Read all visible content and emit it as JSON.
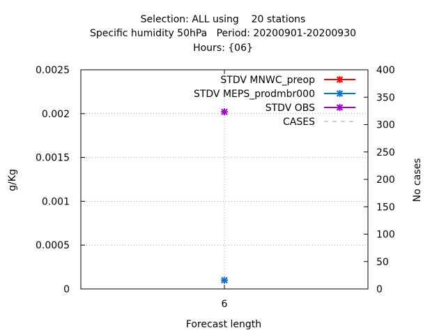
{
  "chart_data": {
    "type": "line",
    "title": [
      "Selection: ALL using    20 stations",
      "Specific humidity 50hPa   Period: 20200901-20200930",
      "Hours: {06}"
    ],
    "xlabel": "Forecast length",
    "ylabel": "g/Kg",
    "y2label": "No cases",
    "categories": [
      "6"
    ],
    "xlim": [
      0,
      12
    ],
    "ylim": [
      0,
      0.0025
    ],
    "y2lim": [
      0,
      400
    ],
    "yticks": [
      "0",
      "0.0005",
      "0.001",
      "0.0015",
      "0.002",
      "0.0025"
    ],
    "y2ticks": [
      "0",
      "50",
      "100",
      "150",
      "200",
      "250",
      "300",
      "350",
      "400"
    ],
    "grid": true,
    "legend_position": "top-right",
    "series": [
      {
        "name": "STDV MNWC_preop",
        "color": "#ff0000",
        "axis": "y",
        "x": [
          6
        ],
        "values": [
          0.0001
        ]
      },
      {
        "name": "STDV MEPS_prodmbr000",
        "color": "#0072d8",
        "axis": "y",
        "x": [
          6
        ],
        "values": [
          0.0001
        ]
      },
      {
        "name": "STDV OBS",
        "color": "#a000d0",
        "axis": "y",
        "x": [
          6
        ],
        "values": [
          0.00202
        ]
      },
      {
        "name": "CASES",
        "color": "#a0a0a0",
        "axis": "y2",
        "x": [
          6
        ],
        "values": [
          20
        ]
      }
    ]
  }
}
